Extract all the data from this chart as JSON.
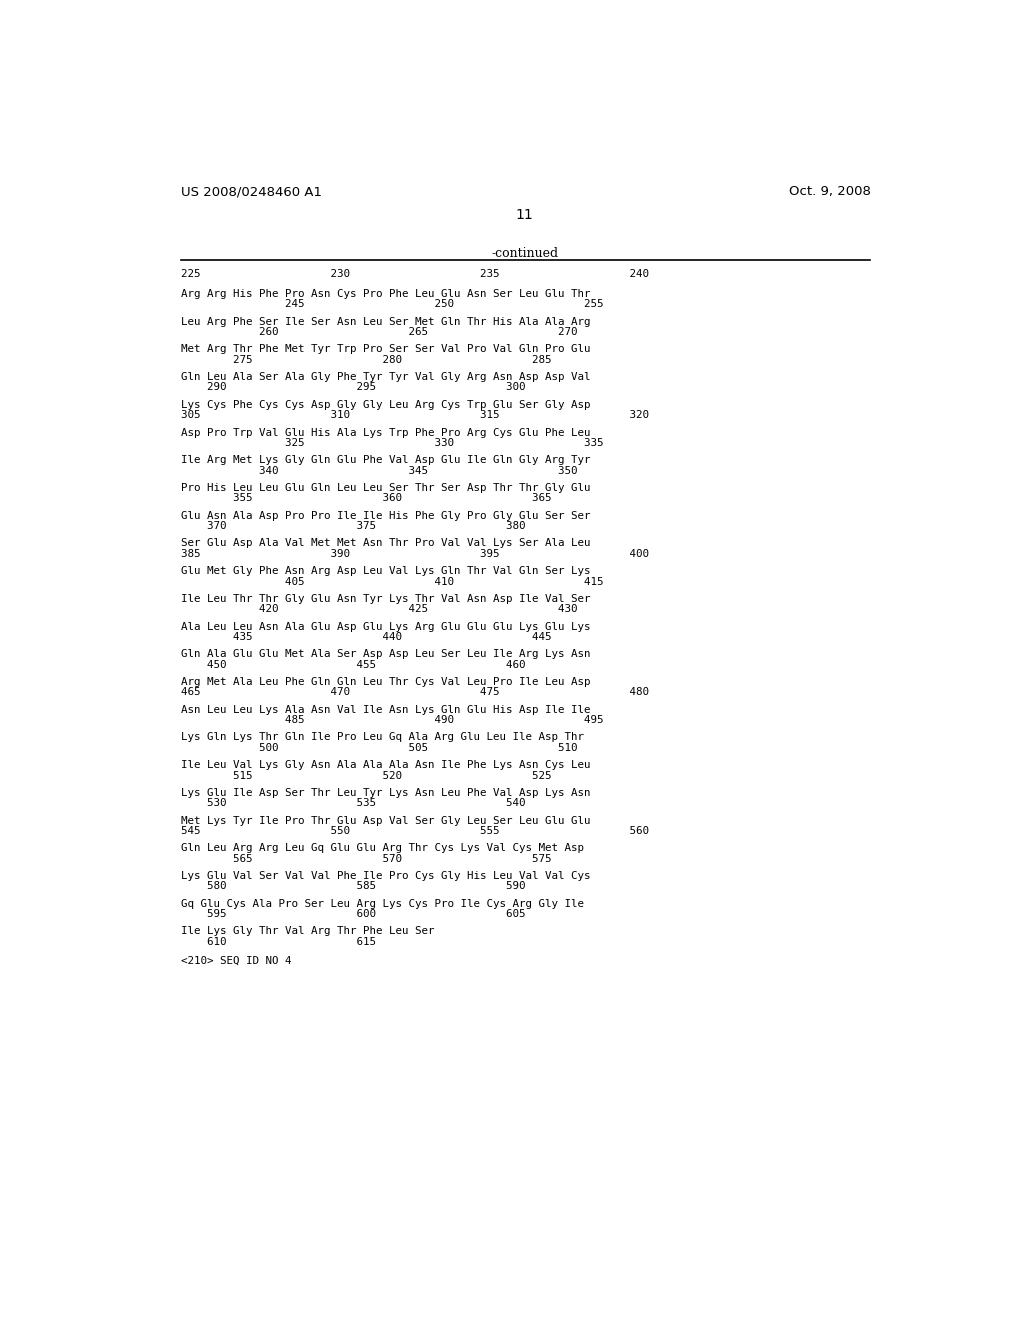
{
  "header_left": "US 2008/0248460 A1",
  "header_right": "Oct. 9, 2008",
  "page_number": "11",
  "continued_label": "-continued",
  "background_color": "#ffffff",
  "text_color": "#000000",
  "blocks": [
    [
      "225                    230                    235                    240",
      "Arg Arg His Phe Pro Asn Cys Pro Phe Leu Glu Asn Ser Leu Glu Thr",
      "                245                    250                    255"
    ],
    [
      "",
      "Leu Arg Phe Ser Ile Ser Asn Leu Ser Met Gln Thr His Ala Ala Arg",
      "            260                    265                    270"
    ],
    [
      "",
      "Met Arg Thr Phe Met Tyr Trp Pro Ser Ser Val Pro Val Gln Pro Glu",
      "        275                    280                    285"
    ],
    [
      "",
      "Gln Leu Ala Ser Ala Gly Phe Tyr Tyr Val Gly Arg Asn Asp Asp Val",
      "    290                    295                    300"
    ],
    [
      "",
      "Lys Cys Phe Cys Cys Asp Gly Gly Leu Arg Cys Trp Glu Ser Gly Asp",
      "305                    310                    315                    320"
    ],
    [
      "",
      "Asp Pro Trp Val Glu His Ala Lys Trp Phe Pro Arg Cys Glu Phe Leu",
      "                325                    330                    335"
    ],
    [
      "",
      "Ile Arg Met Lys Gly Gln Glu Phe Val Asp Glu Ile Gln Gly Arg Tyr",
      "            340                    345                    350"
    ],
    [
      "",
      "Pro His Leu Leu Glu Gln Leu Leu Ser Thr Ser Asp Thr Thr Gly Glu",
      "        355                    360                    365"
    ],
    [
      "",
      "Glu Asn Ala Asp Pro Pro Ile Ile His Phe Gly Pro Gly Glu Ser Ser",
      "    370                    375                    380"
    ],
    [
      "",
      "Ser Glu Asp Ala Val Met Met Asn Thr Pro Val Val Lys Ser Ala Leu",
      "385                    390                    395                    400"
    ],
    [
      "",
      "Glu Met Gly Phe Asn Arg Asp Leu Val Lys Gln Thr Val Gln Ser Lys",
      "                405                    410                    415"
    ],
    [
      "",
      "Ile Leu Thr Thr Gly Glu Asn Tyr Lys Thr Val Asn Asp Ile Val Ser",
      "            420                    425                    430"
    ],
    [
      "",
      "Ala Leu Leu Asn Ala Glu Asp Glu Lys Arg Glu Glu Glu Lys Glu Lys",
      "        435                    440                    445"
    ],
    [
      "",
      "Gln Ala Glu Glu Met Ala Ser Asp Asp Leu Ser Leu Ile Arg Lys Asn",
      "    450                    455                    460"
    ],
    [
      "",
      "Arg Met Ala Leu Phe Gln Gln Leu Thr Cys Val Leu Pro Ile Leu Asp",
      "465                    470                    475                    480"
    ],
    [
      "",
      "Asn Leu Leu Lys Ala Asn Val Ile Asn Lys Gln Glu His Asp Ile Ile",
      "                485                    490                    495"
    ],
    [
      "",
      "Lys Gln Lys Thr Gln Ile Pro Leu Gq Ala Arg Glu Leu Ile Asp Thr",
      "            500                    505                    510"
    ],
    [
      "",
      "Ile Leu Val Lys Gly Asn Ala Ala Ala Asn Ile Phe Lys Asn Cys Leu",
      "        515                    520                    525"
    ],
    [
      "",
      "Lys Glu Ile Asp Ser Thr Leu Tyr Lys Asn Leu Phe Val Asp Lys Asn",
      "    530                    535                    540"
    ],
    [
      "",
      "Met Lys Tyr Ile Pro Thr Glu Asp Val Ser Gly Leu Ser Leu Glu Glu",
      "545                    550                    555                    560"
    ],
    [
      "",
      "Gln Leu Arg Arg Leu Gq Glu Glu Arg Thr Cys Lys Val Cys Met Asp",
      "        565                    570                    575"
    ],
    [
      "",
      "Lys Glu Val Ser Val Val Phe Ile Pro Cys Gly His Leu Val Val Cys",
      "    580                    585                    590"
    ],
    [
      "",
      "Gq Glu Cys Ala Pro Ser Leu Arg Lys Cys Pro Ile Cys Arg Gly Ile",
      "    595                    600                    605"
    ],
    [
      "",
      "Ile Lys Gly Thr Val Arg Thr Phe Leu Ser",
      "    610                    615"
    ]
  ],
  "footer": "<210> SEQ ID NO 4"
}
